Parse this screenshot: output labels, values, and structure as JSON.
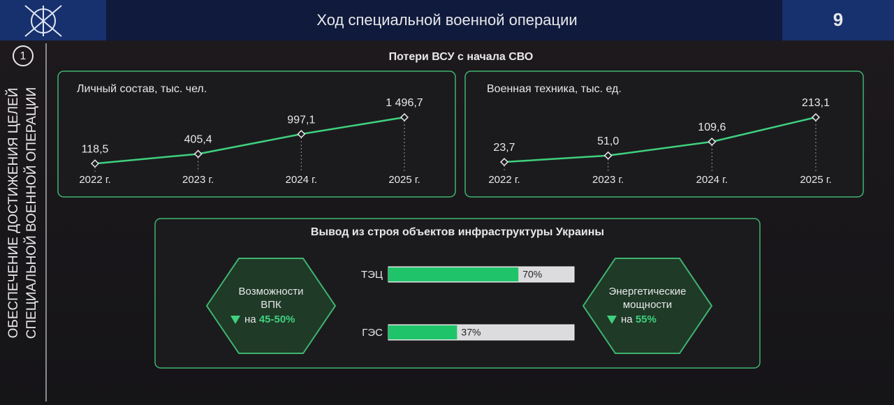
{
  "header": {
    "title": "Ход специальной военной операции",
    "page": "9"
  },
  "sidebar": {
    "number": "1",
    "lines": [
      "ОБЕСПЕЧЕНИЕ ДОСТИЖЕНИЯ ЦЕЛЕЙ",
      "СПЕЦИАЛЬНОЙ ВОЕННОЙ ОПЕРАЦИИ"
    ]
  },
  "section_title": "Потери ВСУ с начала СВО",
  "chart_data": [
    {
      "type": "line",
      "title": "Личный состав, тыс. чел.",
      "categories": [
        "2022 г.",
        "2023 г.",
        "2024 г.",
        "2025 г."
      ],
      "values": [
        118.5,
        405.4,
        997.1,
        1496.7
      ],
      "value_labels": [
        "118,5",
        "405,4",
        "997,1",
        "1 496,7"
      ],
      "color": "#3fd17e"
    },
    {
      "type": "line",
      "title": "Военная техника, тыс. ед.",
      "categories": [
        "2022 г.",
        "2023 г.",
        "2024 г.",
        "2025 г."
      ],
      "values": [
        23.7,
        51.0,
        109.6,
        213.1
      ],
      "value_labels": [
        "23,7",
        "51,0",
        "109,6",
        "213,1"
      ],
      "color": "#3fd17e"
    },
    {
      "type": "bar",
      "title": "Вывод из строя объектов инфраструктуры Украины",
      "categories": [
        "ТЭЦ",
        "ГЭС"
      ],
      "values": [
        70,
        37
      ],
      "value_labels": [
        "70%",
        "37%"
      ],
      "xlim": [
        0,
        100
      ],
      "color": "#1fc46a"
    }
  ],
  "hexagons": [
    {
      "lines": [
        "Возможности",
        "ВПК"
      ],
      "prefix": "на",
      "change": "45-50%"
    },
    {
      "lines": [
        "Энергетические",
        "мощности"
      ],
      "prefix": "на",
      "change": "55%"
    }
  ]
}
